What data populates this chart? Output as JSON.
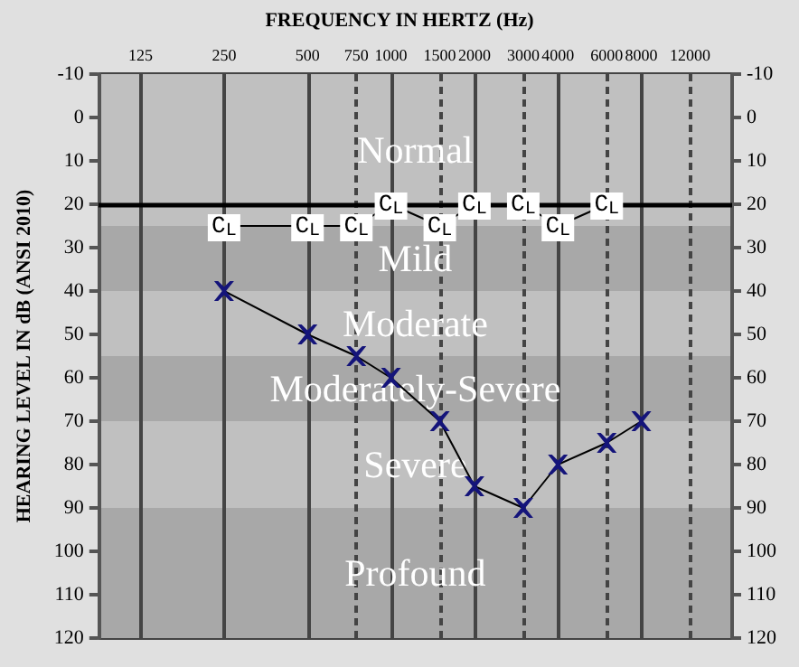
{
  "chart_data": {
    "type": "line",
    "title": "FREQUENCY IN HERTZ (Hz)",
    "ylabel": "HEARING LEVEL IN dB (ANSI 2010)",
    "log": "x",
    "xlim": [
      88,
      17000
    ],
    "xticks": [
      125,
      250,
      500,
      750,
      1000,
      1500,
      2000,
      3000,
      4000,
      6000,
      8000,
      12000
    ],
    "ylim": [
      120,
      -10
    ],
    "yticks": [
      -10,
      0,
      10,
      20,
      30,
      40,
      50,
      60,
      70,
      80,
      90,
      100,
      110,
      120
    ],
    "y2lim": [
      120,
      -10
    ],
    "y2ticks": [
      -10,
      0,
      10,
      20,
      30,
      40,
      50,
      60,
      70,
      80,
      90,
      100,
      110,
      120
    ],
    "grid": true,
    "series": [
      {
        "color": "#14147a",
        "marker": "cross",
        "x": [
          250,
          500,
          750,
          1000,
          1500,
          2000,
          3000,
          4000,
          6000,
          8000
        ],
        "values": [
          40,
          50,
          55,
          60,
          70,
          85,
          90,
          80,
          75,
          70
        ]
      },
      {
        "name": "C$_{L}$",
        "color": "#000000",
        "marker": "square",
        "x": [
          250,
          500,
          750,
          1000,
          1500,
          2000,
          3000,
          4000,
          6000
        ],
        "values": [
          25,
          25,
          25,
          20,
          25,
          20,
          20,
          25,
          20
        ]
      }
    ],
    "bands": [
      {
        "axis": "y",
        "from": -10,
        "to": 25,
        "label": "Normal",
        "color": "#c0c0c0"
      },
      {
        "axis": "y",
        "from": 25,
        "to": 40,
        "label": "Mild",
        "color": "#a8a8a8"
      },
      {
        "axis": "y",
        "from": 40,
        "to": 55,
        "label": "Moderate",
        "color": "#c0c0c0"
      },
      {
        "axis": "y",
        "from": 55,
        "to": 70,
        "label": "Moderately-Severe",
        "color": "#a8a8a8"
      },
      {
        "axis": "y",
        "from": 70,
        "to": 90,
        "label": "Severe",
        "color": "#c0c0c0"
      },
      {
        "axis": "y",
        "from": 90,
        "to": 120,
        "label": "Profound",
        "color": "#a8a8a8"
      }
    ],
    "ref_lines": [
      {
        "axis": "y",
        "value": 20,
        "color": "#000000"
      }
    ]
  }
}
